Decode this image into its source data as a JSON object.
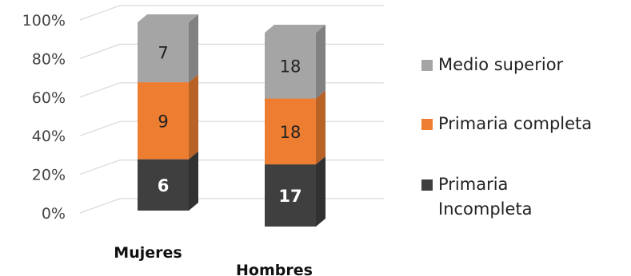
{
  "chart_data": {
    "type": "bar",
    "stacked": "percent",
    "style": "3d-column",
    "categories": [
      "Mujeres",
      "Hombres"
    ],
    "series": [
      {
        "name": "Primaria Incompleta",
        "values": [
          6,
          17
        ],
        "color": "#3f3f3f",
        "label_color": "#ffffff",
        "label_bold": true
      },
      {
        "name": "Primaria completa",
        "values": [
          9,
          18
        ],
        "color": "#ed7d31",
        "label_color": "#222222",
        "label_bold": false
      },
      {
        "name": "Medio superior",
        "values": [
          7,
          18
        ],
        "color": "#a5a5a5",
        "label_color": "#222222",
        "label_bold": false
      }
    ],
    "y_ticks": [
      "0%",
      "20%",
      "40%",
      "60%",
      "80%",
      "100%"
    ],
    "ylim": [
      0,
      100
    ],
    "grid": true,
    "legend": {
      "placement": "right",
      "entries": [
        {
          "lines": [
            "Medio superior"
          ],
          "color": "#a5a5a5"
        },
        {
          "lines": [
            "Primaria completa"
          ],
          "color": "#ed7d31"
        },
        {
          "lines": [
            "Primaria",
            "Incompleta"
          ],
          "color": "#3f3f3f"
        }
      ]
    }
  }
}
